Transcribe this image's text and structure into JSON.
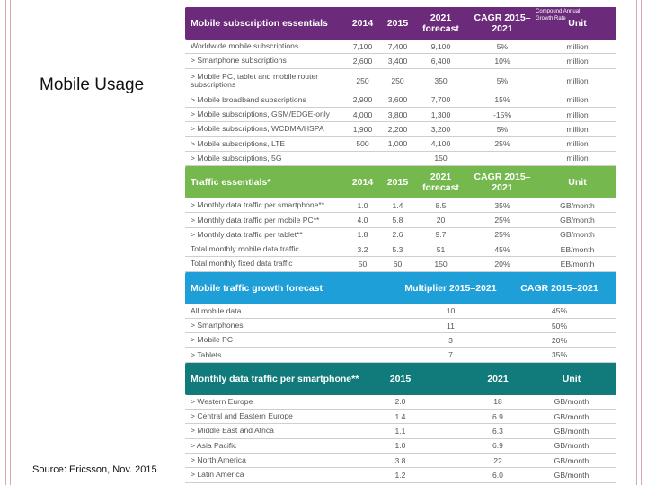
{
  "slide": {
    "title": "Mobile Usage",
    "source": "Source: Ericsson, Nov. 2015",
    "footnote": "Compound Annual Growth Rate"
  },
  "subscriptions": {
    "header": {
      "label": "Mobile subscription essentials",
      "y1": "2014",
      "y2": "2015",
      "forecast": "2021 forecast",
      "cagr": "CAGR 2015–2021",
      "unit": "Unit"
    },
    "rows": [
      {
        "label": "Worldwide mobile subscriptions",
        "y1": "7,100",
        "y2": "7,400",
        "forecast": "9,100",
        "cagr": "5%",
        "unit": "million"
      },
      {
        "label": "> Smartphone subscriptions",
        "y1": "2,600",
        "y2": "3,400",
        "forecast": "6,400",
        "cagr": "10%",
        "unit": "million"
      },
      {
        "label": "> Mobile PC, tablet and mobile router subscriptions",
        "y1": "250",
        "y2": "250",
        "forecast": "350",
        "cagr": "5%",
        "unit": "million"
      },
      {
        "label": "> Mobile broadband subscriptions",
        "y1": "2,900",
        "y2": "3,600",
        "forecast": "7,700",
        "cagr": "15%",
        "unit": "million"
      },
      {
        "label": "> Mobile subscriptions, GSM/EDGE-only",
        "y1": "4,000",
        "y2": "3,800",
        "forecast": "1,300",
        "cagr": "-15%",
        "unit": "million"
      },
      {
        "label": "> Mobile subscriptions, WCDMA/HSPA",
        "y1": "1,900",
        "y2": "2,200",
        "forecast": "3,200",
        "cagr": "5%",
        "unit": "million"
      },
      {
        "label": "> Mobile subscriptions, LTE",
        "y1": "500",
        "y2": "1,000",
        "forecast": "4,100",
        "cagr": "25%",
        "unit": "million"
      },
      {
        "label": "> Mobile subscriptions, 5G",
        "y1": "",
        "y2": "",
        "forecast": "150",
        "cagr": "",
        "unit": "million"
      }
    ]
  },
  "traffic": {
    "header": {
      "label": "Traffic essentials*",
      "y1": "2014",
      "y2": "2015",
      "forecast": "2021 forecast",
      "cagr": "CAGR 2015–2021",
      "unit": "Unit"
    },
    "rows": [
      {
        "label": "> Monthly data traffic per smartphone**",
        "y1": "1.0",
        "y2": "1.4",
        "forecast": "8.5",
        "cagr": "35%",
        "unit": "GB/month"
      },
      {
        "label": "> Monthly data traffic per mobile PC**",
        "y1": "4.0",
        "y2": "5.8",
        "forecast": "20",
        "cagr": "25%",
        "unit": "GB/month"
      },
      {
        "label": "> Monthly data traffic per tablet**",
        "y1": "1.8",
        "y2": "2.6",
        "forecast": "9.7",
        "cagr": "25%",
        "unit": "GB/month"
      },
      {
        "label": "Total monthly mobile data traffic",
        "y1": "3.2",
        "y2": "5.3",
        "forecast": "51",
        "cagr": "45%",
        "unit": "EB/month"
      },
      {
        "label": "Total monthly fixed data traffic",
        "y1": "50",
        "y2": "60",
        "forecast": "150",
        "cagr": "20%",
        "unit": "EB/month"
      }
    ]
  },
  "growth": {
    "header": {
      "label": "Mobile traffic growth forecast",
      "multiplier": "Multiplier 2015–2021",
      "cagr": "CAGR 2015–2021"
    },
    "rows": [
      {
        "label": "All mobile data",
        "multiplier": "10",
        "cagr": "45%"
      },
      {
        "label": "> Smartphones",
        "multiplier": "11",
        "cagr": "50%"
      },
      {
        "label": "> Mobile PC",
        "multiplier": "3",
        "cagr": "20%"
      },
      {
        "label": "> Tablets",
        "multiplier": "7",
        "cagr": "35%"
      }
    ]
  },
  "regional": {
    "header": {
      "label": "Monthly data traffic per smartphone**",
      "y1": "2015",
      "y2": "2021",
      "unit": "Unit"
    },
    "rows": [
      {
        "label": "> Western Europe",
        "y1": "2.0",
        "y2": "18",
        "unit": "GB/month"
      },
      {
        "label": "> Central and Eastern Europe",
        "y1": "1.4",
        "y2": "6.9",
        "unit": "GB/month"
      },
      {
        "label": "> Middle East and Africa",
        "y1": "1.1",
        "y2": "6.3",
        "unit": "GB/month"
      },
      {
        "label": "> Asia Pacific",
        "y1": "1.0",
        "y2": "6.9",
        "unit": "GB/month"
      },
      {
        "label": "> North America",
        "y1": "3.8",
        "y2": "22",
        "unit": "GB/month"
      },
      {
        "label": "> Latin America",
        "y1": "1.2",
        "y2": "6.0",
        "unit": "GB/month"
      }
    ]
  }
}
